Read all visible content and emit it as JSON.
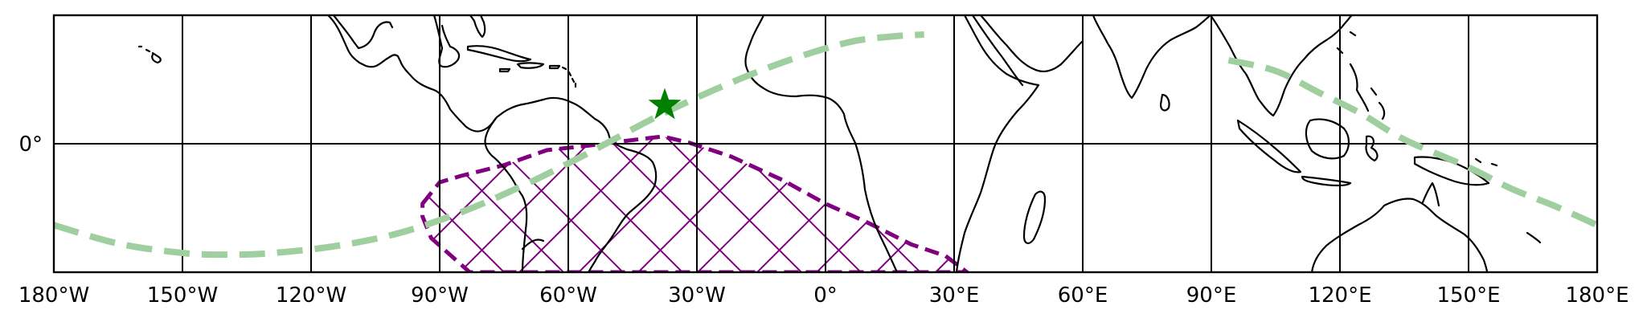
{
  "map": {
    "projection": "PlateCarree",
    "extent": {
      "lon": [
        -180,
        180
      ],
      "lat": [
        -30,
        30
      ]
    },
    "gridlines": {
      "lon": [
        -150,
        -120,
        -90,
        -60,
        -30,
        0,
        30,
        60,
        90,
        120,
        150
      ],
      "lat": [
        0
      ]
    },
    "x_tick_labels": [
      "180°W",
      "150°W",
      "120°W",
      "90°W",
      "60°W",
      "30°W",
      "0°",
      "30°E",
      "60°E",
      "90°E",
      "120°E",
      "150°E",
      "180°E"
    ],
    "y_tick_labels": [
      "0°"
    ],
    "colors": {
      "track": "#9fcf9f",
      "hatch_region": "#800080",
      "marker": "#008000",
      "coastline": "#000000",
      "grid": "#000000"
    },
    "track_line": {
      "style": "dashed",
      "segments": [
        [
          [
            -180,
            -19
          ],
          [
            -165,
            -23.3
          ],
          [
            -150,
            -25.5
          ],
          [
            -140,
            -25.9
          ],
          [
            -130,
            -25.6
          ],
          [
            -115,
            -24
          ],
          [
            -100,
            -21
          ],
          [
            -85,
            -16
          ],
          [
            -70,
            -9.5
          ],
          [
            -55,
            -2
          ],
          [
            -40,
            6
          ],
          [
            -25,
            13
          ],
          [
            -10,
            19
          ],
          [
            5,
            23.6
          ],
          [
            15,
            25
          ],
          [
            23,
            25.5
          ]
        ],
        [
          [
            94,
            19.5
          ],
          [
            105,
            17
          ],
          [
            115,
            12
          ],
          [
            125,
            7
          ],
          [
            135,
            1
          ],
          [
            150,
            -5.5
          ],
          [
            160,
            -10.5
          ],
          [
            170,
            -14.5
          ],
          [
            180,
            -19
          ]
        ]
      ]
    },
    "hatched_region": {
      "pattern": "crosshatch",
      "boundary": [
        [
          -94,
          -14
        ],
        [
          -90,
          -9
        ],
        [
          -85,
          -7.5
        ],
        [
          -75,
          -5
        ],
        [
          -65,
          -1.5
        ],
        [
          -55,
          -0.4
        ],
        [
          -48,
          0.5
        ],
        [
          -38,
          1.7
        ],
        [
          -32,
          0.3
        ],
        [
          -22,
          -3
        ],
        [
          -10,
          -8.5
        ],
        [
          0,
          -14
        ],
        [
          10,
          -18.5
        ],
        [
          20,
          -23.5
        ],
        [
          28,
          -26.2
        ],
        [
          33,
          -30
        ],
        [
          -83,
          -30
        ],
        [
          -92,
          -22
        ],
        [
          -94,
          -17
        ]
      ]
    },
    "marker": {
      "symbol": "star",
      "lon": -37.5,
      "lat": 9
    }
  }
}
